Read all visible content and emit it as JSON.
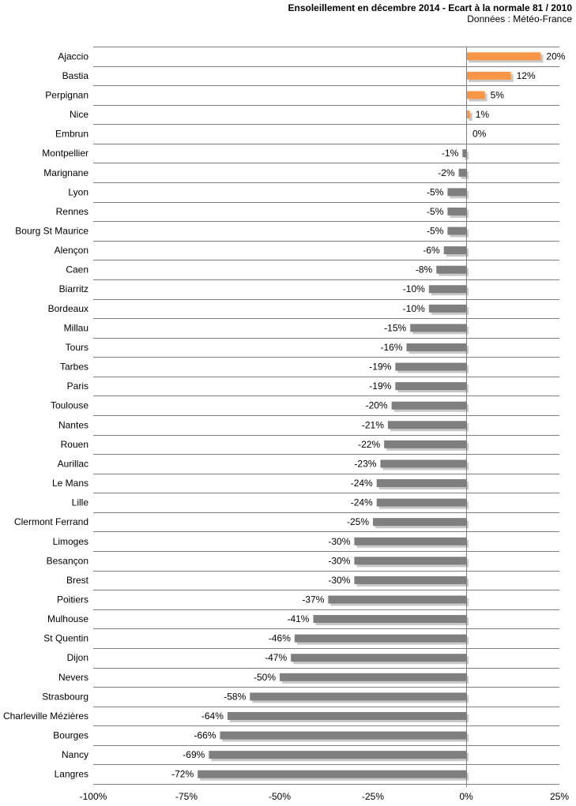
{
  "chart_data": {
    "type": "bar",
    "orientation": "horizontal",
    "title": "Ensoleillement en décembre 2014 - Ecart à la normale 81 / 2010",
    "subtitle": "Données : Météo-France",
    "categories": [
      "Ajaccio",
      "Bastia",
      "Perpignan",
      "Nice",
      "Embrun",
      "Montpellier",
      "Marignane",
      "Lyon",
      "Rennes",
      "Bourg St Maurice",
      "Alençon",
      "Caen",
      "Biarritz",
      "Bordeaux",
      "Millau",
      "Tours",
      "Tarbes",
      "Paris",
      "Toulouse",
      "Nantes",
      "Rouen",
      "Aurillac",
      "Le Mans",
      "Lille",
      "Clermont Ferrand",
      "Limoges",
      "Besançon",
      "Brest",
      "Poitiers",
      "Mulhouse",
      "St Quentin",
      "Dijon",
      "Nevers",
      "Strasbourg",
      "Charleville Mézières",
      "Bourges",
      "Nancy",
      "Langres"
    ],
    "values": [
      20,
      12,
      5,
      1,
      0,
      -1,
      -2,
      -5,
      -5,
      -5,
      -6,
      -8,
      -10,
      -10,
      -15,
      -16,
      -19,
      -19,
      -20,
      -21,
      -22,
      -23,
      -24,
      -24,
      -25,
      -30,
      -30,
      -30,
      -37,
      -41,
      -46,
      -47,
      -50,
      -58,
      -64,
      -66,
      -69,
      -72
    ],
    "value_labels": [
      "20%",
      "12%",
      "5%",
      "1%",
      "0%",
      "-1%",
      "-2%",
      "-5%",
      "-5%",
      "-5%",
      "-6%",
      "-8%",
      "-10%",
      "-10%",
      "-15%",
      "-16%",
      "-19%",
      "-19%",
      "-20%",
      "-21%",
      "-22%",
      "-23%",
      "-24%",
      "-24%",
      "-25%",
      "-30%",
      "-30%",
      "-30%",
      "-37%",
      "-41%",
      "-46%",
      "-47%",
      "-50%",
      "-58%",
      "-64%",
      "-66%",
      "-69%",
      "-72%"
    ],
    "xlim": [
      -100,
      25
    ],
    "x_ticks": [
      -100,
      -75,
      -50,
      -25,
      0,
      25
    ],
    "x_tick_labels": [
      "-100%",
      "-75%",
      "-50%",
      "-25%",
      "0%",
      "25%"
    ],
    "grid": "horizontal row separators",
    "colors": {
      "positive": "#f79646",
      "negative": "#7f7f7f",
      "shadow": "#c8c8c8",
      "gridline": "#7f7f7f",
      "zero_line": "#7f7f7f"
    }
  }
}
